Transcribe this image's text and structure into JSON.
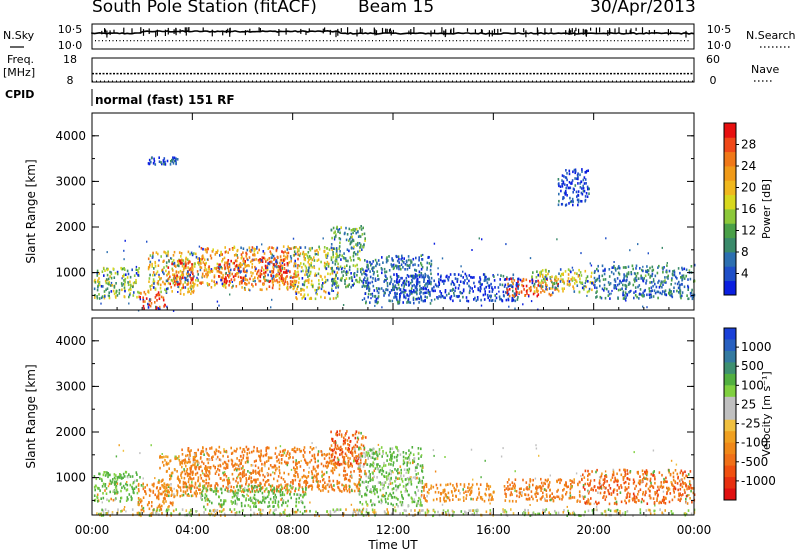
{
  "header": {
    "station": "South Pole Station (fitACF)",
    "beam": "Beam 15",
    "date": "30/Apr/2013"
  },
  "side_labels": {
    "nsky": "N.Sky",
    "nsearch": "N.Search",
    "freq": "Freq.",
    "mhz": "[MHz]",
    "nave": "Nave",
    "cpid": "CPID"
  },
  "noise_panel": {
    "left_ticks": [
      "10^5",
      "10^0"
    ],
    "right_ticks": [
      "10^5",
      "10^0"
    ]
  },
  "freq_panel": {
    "left_ticks": [
      "18",
      "8"
    ],
    "right_ticks": [
      "60",
      "0"
    ],
    "frequency_mhz": 11.5,
    "nave": 0
  },
  "cpid_text": "normal (fast) 151 RF",
  "x_axis": {
    "label": "Time UT",
    "ticks": [
      "00:00",
      "04:00",
      "08:00",
      "12:00",
      "16:00",
      "20:00",
      "00:00"
    ],
    "range_hours": [
      0,
      24
    ]
  },
  "chart_data": [
    {
      "type": "heatmap",
      "name": "power",
      "xlabel": "Time UT",
      "ylabel": "Slant Range [km]",
      "xlim": [
        0,
        24
      ],
      "ylim": [
        180,
        4500
      ],
      "yticks": [
        "1000",
        "2000",
        "3000",
        "4000"
      ],
      "colorbar": {
        "label": "Power [dB]",
        "ticks": [
          "4",
          "8",
          "12",
          "16",
          "20",
          "24",
          "28"
        ],
        "colors": [
          "#0a1fe0",
          "#1f4fc8",
          "#2c6fb0",
          "#3a8a6a",
          "#4aa048",
          "#8cc83a",
          "#d8d81e",
          "#f0b81e",
          "#f09a18",
          "#f07818",
          "#f04818",
          "#e81010"
        ]
      },
      "regions": [
        {
          "t0": 0.05,
          "t1": 1.9,
          "r0": 450,
          "r1": 1150,
          "level": 0.45
        },
        {
          "t0": 1.85,
          "t1": 2.9,
          "r0": 220,
          "r1": 600,
          "level": 0.9
        },
        {
          "t0": 2.2,
          "t1": 4.3,
          "r0": 550,
          "r1": 1500,
          "level": 0.6
        },
        {
          "t0": 3.0,
          "t1": 4.0,
          "r0": 700,
          "r1": 1300,
          "level": 0.85
        },
        {
          "t0": 4.3,
          "t1": 6.0,
          "r0": 700,
          "r1": 1600,
          "level": 0.7
        },
        {
          "t0": 5.0,
          "t1": 6.1,
          "r0": 800,
          "r1": 1300,
          "level": 0.9
        },
        {
          "t0": 6.0,
          "t1": 8.2,
          "r0": 650,
          "r1": 1600,
          "level": 0.75
        },
        {
          "t0": 6.6,
          "t1": 7.8,
          "r0": 800,
          "r1": 1400,
          "level": 0.9
        },
        {
          "t0": 8.0,
          "t1": 9.8,
          "r0": 450,
          "r1": 1600,
          "level": 0.55
        },
        {
          "t0": 9.5,
          "t1": 10.9,
          "r0": 700,
          "r1": 2050,
          "level": 0.35
        },
        {
          "t0": 10.8,
          "t1": 13.5,
          "r0": 350,
          "r1": 1400,
          "level": 0.2
        },
        {
          "t0": 12.0,
          "t1": 17.0,
          "r0": 400,
          "r1": 1000,
          "level": 0.1
        },
        {
          "t0": 16.5,
          "t1": 18.6,
          "r0": 500,
          "r1": 900,
          "level": 0.85
        },
        {
          "t0": 17.5,
          "t1": 20.0,
          "r0": 600,
          "r1": 1100,
          "level": 0.55
        },
        {
          "t0": 20.0,
          "t1": 24.0,
          "r0": 450,
          "r1": 1200,
          "level": 0.25
        },
        {
          "t0": 18.5,
          "t1": 19.8,
          "r0": 2500,
          "r1": 3300,
          "level": 0.1
        },
        {
          "t0": 2.2,
          "t1": 3.4,
          "r0": 3400,
          "r1": 3550,
          "level": 0.1
        }
      ]
    },
    {
      "type": "heatmap",
      "name": "velocity",
      "xlabel": "Time UT",
      "ylabel": "Slant Range [km]",
      "xlim": [
        0,
        24
      ],
      "ylim": [
        180,
        4500
      ],
      "yticks": [
        "1000",
        "2000",
        "3000",
        "4000"
      ],
      "colorbar": {
        "label": "Velocity [m s⁻¹]",
        "ticks": [
          "1000",
          "500",
          "100",
          "25",
          "-25",
          "-100",
          "-500",
          "-1000"
        ],
        "colors": [
          "#1a40d8",
          "#2860c0",
          "#347aa0",
          "#3e9070",
          "#52b040",
          "#80d040",
          "#c0c0c0",
          "#c0c0c0",
          "#f0c040",
          "#f0a020",
          "#f08818",
          "#f07018",
          "#f05010",
          "#e83010",
          "#e01010"
        ]
      },
      "regions": [
        {
          "t0": 0.05,
          "t1": 1.9,
          "r0": 500,
          "r1": 1150,
          "v": 150
        },
        {
          "t0": 1.8,
          "t1": 3.2,
          "r0": 280,
          "r1": 900,
          "v": -250
        },
        {
          "t0": 2.6,
          "t1": 4.3,
          "r0": 600,
          "r1": 1500,
          "v": -150
        },
        {
          "t0": 3.5,
          "t1": 10.7,
          "r0": 700,
          "r1": 1700,
          "v": -300
        },
        {
          "t0": 4.3,
          "t1": 8.5,
          "r0": 380,
          "r1": 850,
          "v": 120
        },
        {
          "t0": 9.5,
          "t1": 10.9,
          "r0": 1300,
          "r1": 2050,
          "v": -600
        },
        {
          "t0": 10.6,
          "t1": 13.2,
          "r0": 400,
          "r1": 1700,
          "v": 110
        },
        {
          "t0": 13.2,
          "t1": 16.0,
          "r0": 500,
          "r1": 900,
          "v": -200
        },
        {
          "t0": 16.4,
          "t1": 19.5,
          "r0": 500,
          "r1": 1000,
          "v": -300
        },
        {
          "t0": 19.5,
          "t1": 24.0,
          "r0": 450,
          "r1": 1200,
          "v": -450
        },
        {
          "t0": 0.0,
          "t1": 24.0,
          "r0": 190,
          "r1": 330,
          "v": 20
        }
      ]
    }
  ]
}
